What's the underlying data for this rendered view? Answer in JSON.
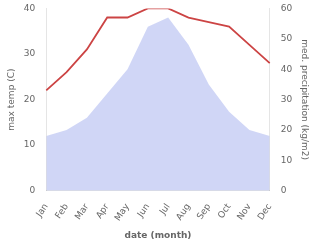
{
  "chart_data": {
    "type": "line",
    "categories": [
      "Jan",
      "Feb",
      "Mar",
      "Apr",
      "May",
      "Jun",
      "Jul",
      "Aug",
      "Sep",
      "Oct",
      "Nov",
      "Dec"
    ],
    "xlabel": "date (month)",
    "ylabel": "max temp (C)",
    "y2label": "med. precipitation (kg/m2)",
    "series": [
      {
        "type": "area",
        "color": "#aab4ee",
        "axis": "y2",
        "values": [
          18,
          20,
          24,
          32,
          40,
          54,
          57,
          48,
          35,
          26,
          20,
          18
        ]
      },
      {
        "type": "line",
        "color": "#cc4444",
        "values": [
          22,
          26,
          31,
          38,
          38,
          40,
          40,
          38,
          37,
          36,
          32,
          28
        ]
      }
    ],
    "ylim": [
      0,
      40
    ],
    "yticks": [
      0,
      10,
      20,
      30,
      40
    ],
    "y2lim": [
      0,
      60
    ],
    "y2ticks": [
      0,
      10,
      20,
      30,
      40,
      50,
      60
    ],
    "grid": false
  }
}
